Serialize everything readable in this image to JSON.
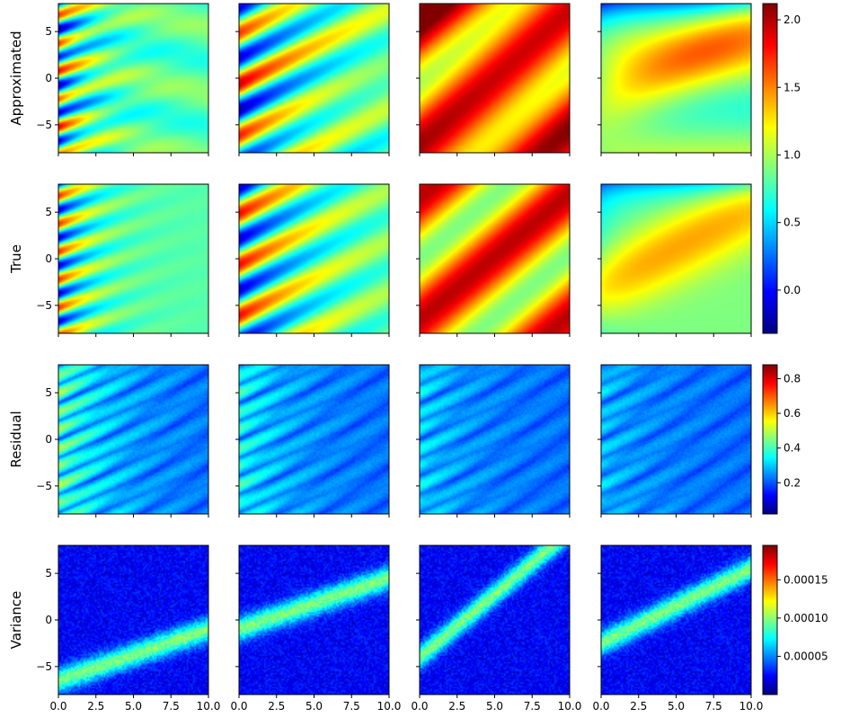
{
  "chart_data": {
    "type": "heatmap",
    "colormap": "jet",
    "rows": [
      {
        "label": "Approximated",
        "colorbar": "value"
      },
      {
        "label": "True",
        "colorbar": "value"
      },
      {
        "label": "Residual",
        "colorbar": "residual"
      },
      {
        "label": "Variance",
        "colorbar": "variance"
      }
    ],
    "columns": 4,
    "xlim": [
      0,
      10
    ],
    "ylim": [
      -8,
      8
    ],
    "x_ticks": [
      "0.0",
      "2.5",
      "5.0",
      "7.5",
      "10.0"
    ],
    "x_tick_values": [
      0,
      2.5,
      5,
      7.5,
      10
    ],
    "y_ticks": [
      "5",
      "0",
      "−5"
    ],
    "y_tick_values": [
      5,
      0,
      -5
    ],
    "colorbars": {
      "value": {
        "range": [
          -0.32,
          2.12
        ],
        "ticks": [
          "2.0",
          "1.5",
          "1.0",
          "0.5",
          "0.0"
        ],
        "tick_values": [
          2.0,
          1.5,
          1.0,
          0.5,
          0.0
        ]
      },
      "residual": {
        "range": [
          0.02,
          0.88
        ],
        "ticks": [
          "0.8",
          "0.6",
          "0.4",
          "0.2"
        ],
        "tick_values": [
          0.8,
          0.6,
          0.4,
          0.2
        ]
      },
      "variance": {
        "range": [
          0.0,
          0.000195
        ],
        "ticks": [
          "0.00015",
          "0.00010",
          "0.00005"
        ],
        "tick_values": [
          0.00015,
          0.0001,
          5e-05
        ]
      }
    },
    "grid": false
  }
}
